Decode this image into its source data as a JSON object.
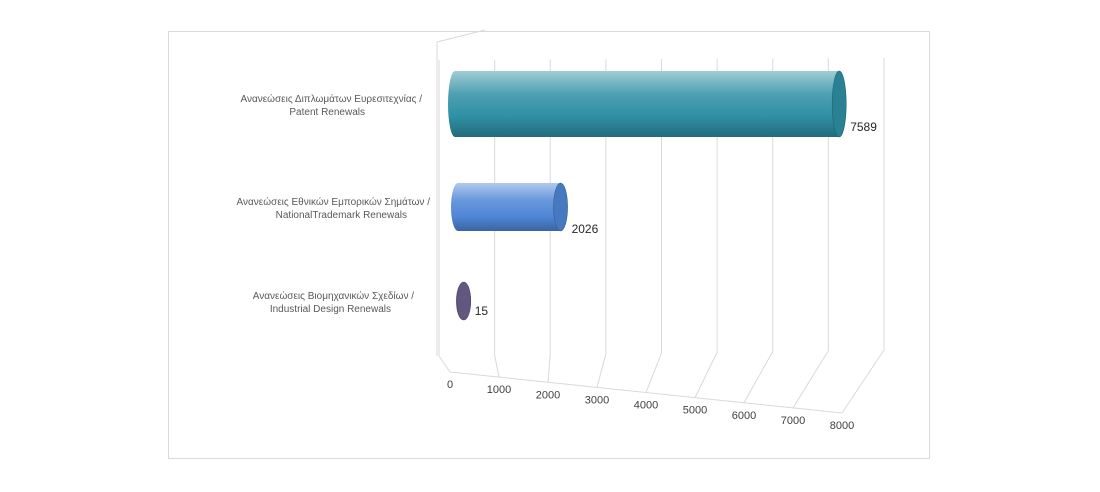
{
  "chart_data": {
    "type": "bar",
    "orientation": "horizontal",
    "style": "3d-cylinder",
    "categories": [
      [
        "Ανανεώσεις  Διπλωμάτων Ευρεσιτεχνίας  /",
        "Patent Renewals"
      ],
      [
        "Ανανεώσεις  Εθνικών  Εμπορικών Σημάτων /",
        "NationalTrademark Renewals"
      ],
      [
        "Ανανεώσεις  Βιομηχανικών Σχεδίων  /",
        "Industrial Design Renewals"
      ]
    ],
    "values": [
      7589,
      2026,
      15
    ],
    "data_labels": [
      "7589",
      "2026",
      "15"
    ],
    "colors": [
      "#2e8fa3",
      "#4f86d6",
      "#6e6190"
    ],
    "xlim": [
      0,
      8000
    ],
    "x_ticks": [
      "0",
      "1000",
      "2000",
      "3000",
      "4000",
      "5000",
      "6000",
      "7000",
      "8000"
    ],
    "grid": true,
    "title": "",
    "xlabel": "",
    "ylabel": ""
  }
}
